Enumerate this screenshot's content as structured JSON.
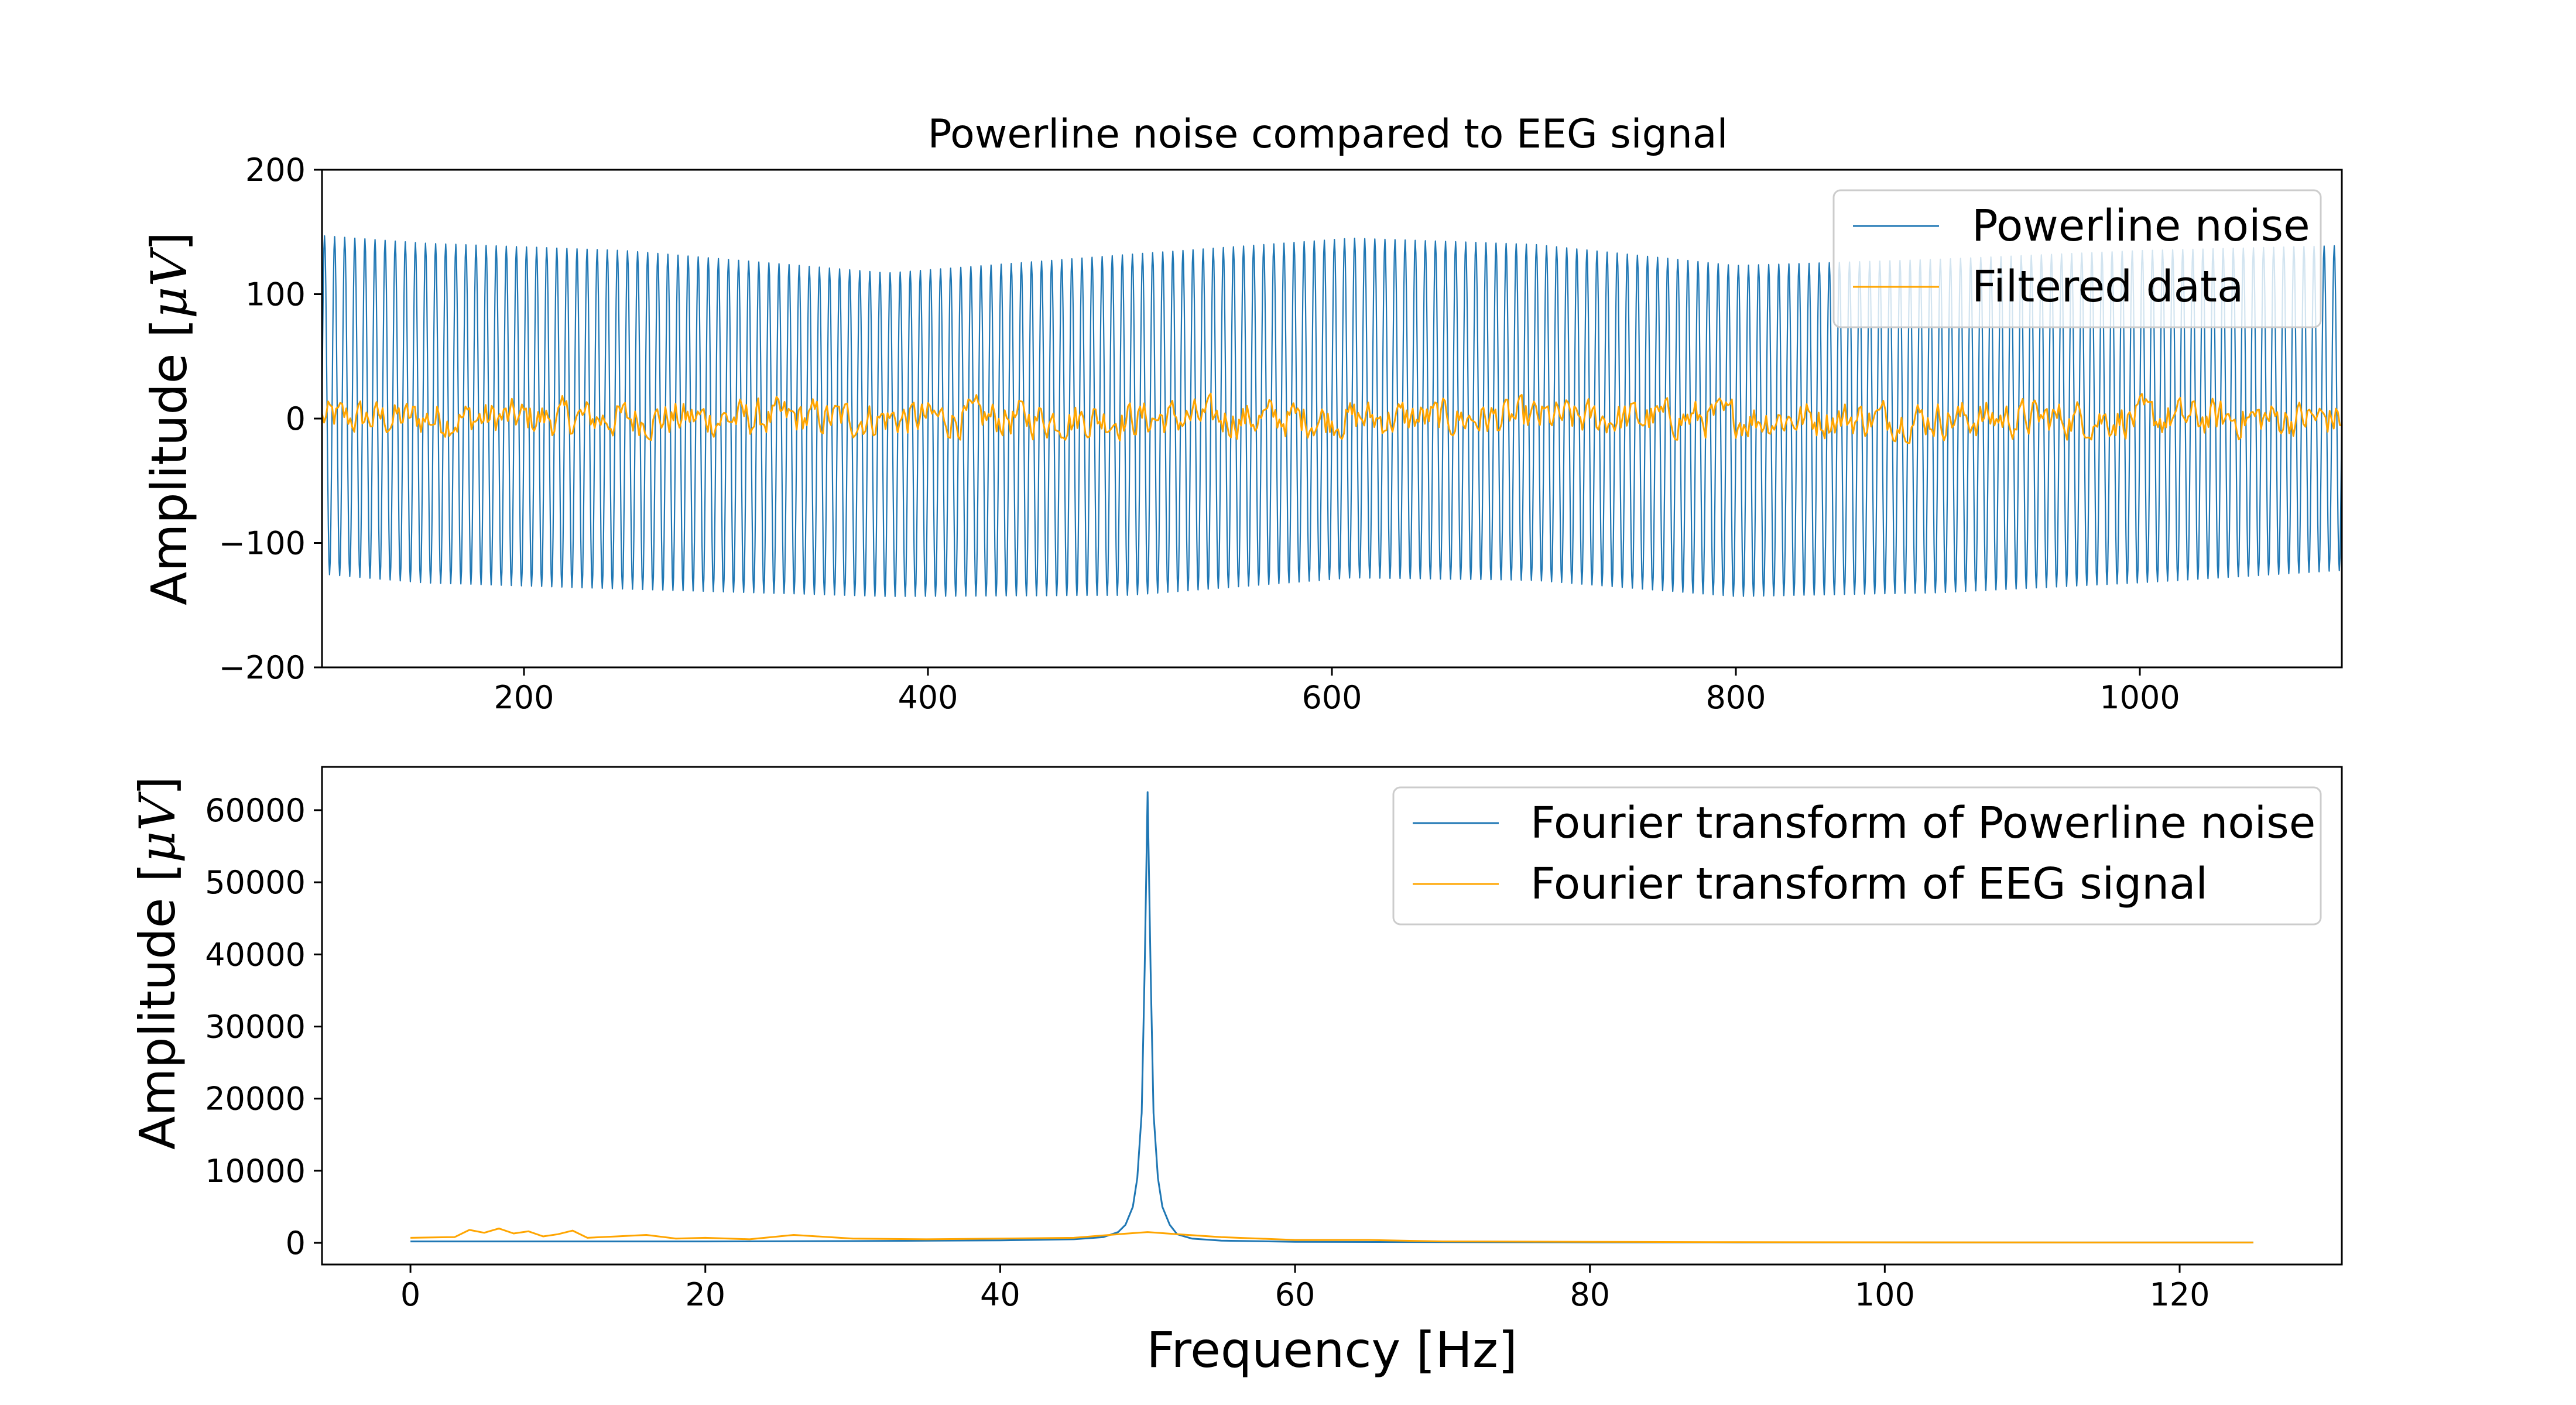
{
  "chart_data": [
    {
      "type": "line",
      "title": "Powerline noise compared to EEG signal",
      "xlabel": "",
      "ylabel": "Amplitude [μV]",
      "xlim": [
        100,
        1100
      ],
      "ylim": [
        -200,
        200
      ],
      "x_ticks": [
        "200",
        "400",
        "600",
        "800",
        "1000"
      ],
      "y_ticks": [
        "200",
        "100",
        "0",
        "−100",
        "−200"
      ],
      "legend_position": "top-right",
      "grid": false,
      "series": [
        {
          "name": "Powerline noise",
          "color": "#1f77b4",
          "form": "sinusoid",
          "period": 5,
          "mean": 0,
          "envelope": {
            "x": [
              100,
              150,
              250,
              380,
              500,
              610,
              700,
              800,
              900,
              1000,
              1100
            ],
            "max": [
              147,
              141,
              135,
              117,
              132,
              145,
              140,
              123,
              128,
              135,
              139
            ],
            "min": [
              -125,
              -132,
              -137,
              -143,
              -142,
              -128,
              -130,
              -143,
              -140,
              -132,
              -122
            ]
          }
        },
        {
          "name": "Filtered data",
          "color": "#ffa500",
          "form": "noise",
          "mean": 0,
          "amplitude_range": [
            -35,
            32
          ],
          "x_range": [
            100,
            1100
          ]
        }
      ]
    },
    {
      "type": "line",
      "title": "",
      "xlabel": "Frequency [Hz]",
      "ylabel": "Amplitude [μV]",
      "xlim": [
        -6,
        131
      ],
      "ylim": [
        -3000,
        66000
      ],
      "x_ticks": [
        "0",
        "20",
        "40",
        "60",
        "80",
        "100",
        "120"
      ],
      "y_ticks": [
        "60000",
        "50000",
        "40000",
        "30000",
        "20000",
        "10000",
        "0"
      ],
      "legend_position": "top-right",
      "grid": false,
      "series": [
        {
          "name": "Fourier transform of Powerline noise",
          "color": "#1f77b4",
          "x": [
            0,
            10,
            20,
            30,
            40,
            45,
            47,
            48,
            48.5,
            49,
            49.3,
            49.6,
            49.8,
            50,
            50.2,
            50.4,
            50.7,
            51,
            51.5,
            52,
            53,
            55,
            60,
            70,
            80,
            90,
            100,
            110,
            125
          ],
          "y": [
            200,
            200,
            200,
            250,
            350,
            500,
            800,
            1500,
            2500,
            5000,
            9000,
            18000,
            38000,
            62500,
            38000,
            18000,
            9000,
            5000,
            2500,
            1200,
            600,
            300,
            150,
            100,
            80,
            70,
            60,
            50,
            50
          ]
        },
        {
          "name": "Fourier transform of EEG signal",
          "color": "#ffa500",
          "x": [
            0,
            3,
            4,
            5,
            6,
            7,
            8,
            9,
            10,
            11,
            12,
            14,
            16,
            18,
            20,
            23,
            26,
            30,
            35,
            40,
            45,
            48,
            50,
            52,
            55,
            60,
            65,
            70,
            80,
            90,
            100,
            110,
            125
          ],
          "y": [
            700,
            800,
            1800,
            1400,
            2000,
            1300,
            1600,
            900,
            1200,
            1700,
            700,
            900,
            1100,
            600,
            700,
            500,
            1100,
            600,
            500,
            600,
            700,
            1200,
            1500,
            1200,
            800,
            400,
            400,
            200,
            150,
            100,
            80,
            60,
            50
          ]
        }
      ]
    }
  ]
}
